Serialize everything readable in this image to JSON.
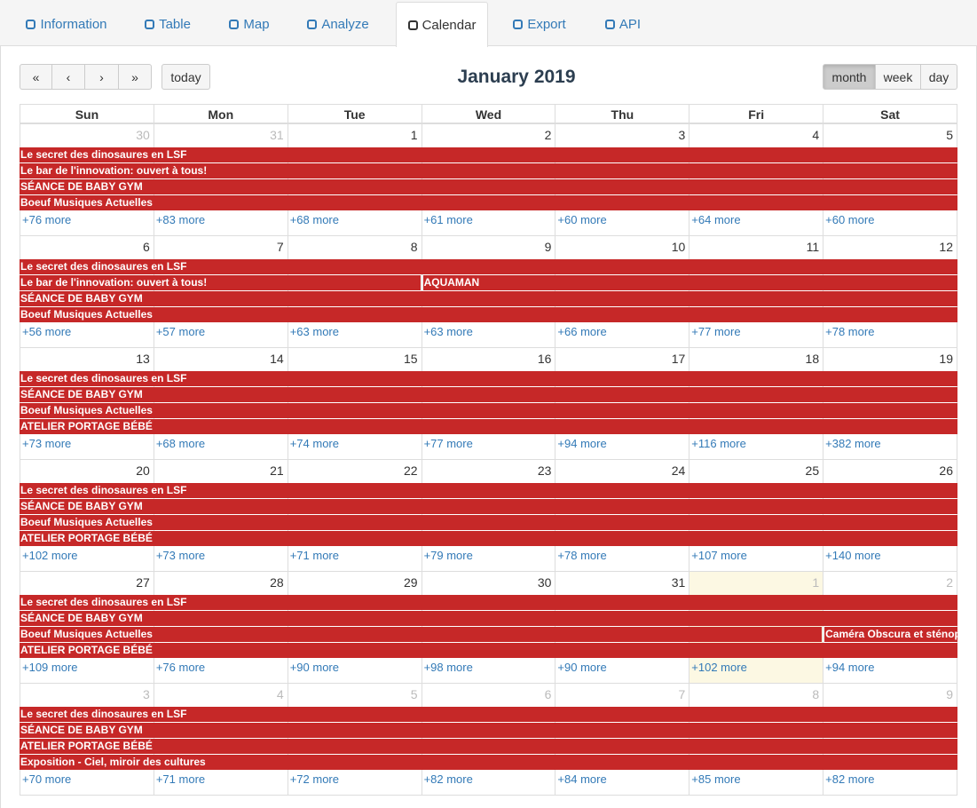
{
  "tabs": [
    {
      "label": "Information"
    },
    {
      "label": "Table"
    },
    {
      "label": "Map"
    },
    {
      "label": "Analyze"
    },
    {
      "label": "Calendar",
      "active": true
    },
    {
      "label": "Export"
    },
    {
      "label": "API"
    }
  ],
  "toolbar": {
    "today": "today",
    "title": "January 2019",
    "views": [
      {
        "label": "month",
        "active": true
      },
      {
        "label": "week"
      },
      {
        "label": "day"
      }
    ]
  },
  "weekdays": [
    "Sun",
    "Mon",
    "Tue",
    "Wed",
    "Thu",
    "Fri",
    "Sat"
  ],
  "weeks": [
    {
      "days": [
        {
          "day": 30,
          "other_month": true
        },
        {
          "day": 31,
          "other_month": true
        },
        {
          "day": 1
        },
        {
          "day": 2
        },
        {
          "day": 3
        },
        {
          "day": 4
        },
        {
          "day": 5
        }
      ],
      "rows": [
        [
          {
            "title": "Le secret des dinosaures en LSF"
          }
        ],
        [
          {
            "title": "Le bar de l'innovation: ouvert à tous!"
          }
        ],
        [
          {
            "title": "SÉANCE DE BABY GYM"
          }
        ],
        [
          {
            "title": "Boeuf Musiques Actuelles"
          }
        ]
      ],
      "more": [
        "+76 more",
        "+83 more",
        "+68 more",
        "+61 more",
        "+60 more",
        "+64 more",
        "+60 more"
      ]
    },
    {
      "days": [
        {
          "day": 6
        },
        {
          "day": 7
        },
        {
          "day": 8
        },
        {
          "day": 9
        },
        {
          "day": 10
        },
        {
          "day": 11
        },
        {
          "day": 12
        }
      ],
      "rows": [
        [
          {
            "title": "Le secret des dinosaures en LSF"
          }
        ],
        [
          {
            "title": "Le bar de l'innovation: ouvert à tous!",
            "start": 6,
            "end": 8
          },
          {
            "title": "AQUAMAN",
            "start": 9,
            "end": 12
          }
        ],
        [
          {
            "title": "SÉANCE DE BABY GYM"
          }
        ],
        [
          {
            "title": "Boeuf Musiques Actuelles"
          }
        ]
      ],
      "more": [
        "+56 more",
        "+57 more",
        "+63 more",
        "+63 more",
        "+66 more",
        "+77 more",
        "+78 more"
      ]
    },
    {
      "days": [
        {
          "day": 13
        },
        {
          "day": 14
        },
        {
          "day": 15
        },
        {
          "day": 16
        },
        {
          "day": 17
        },
        {
          "day": 18
        },
        {
          "day": 19
        }
      ],
      "rows": [
        [
          {
            "title": "Le secret des dinosaures en LSF"
          }
        ],
        [
          {
            "title": "SÉANCE DE BABY GYM"
          }
        ],
        [
          {
            "title": "Boeuf Musiques Actuelles"
          }
        ],
        [
          {
            "title": "ATELIER PORTAGE BÉBÉ"
          }
        ]
      ],
      "more": [
        "+73 more",
        "+68 more",
        "+74 more",
        "+77 more",
        "+94 more",
        "+116 more",
        "+382 more"
      ]
    },
    {
      "days": [
        {
          "day": 20
        },
        {
          "day": 21
        },
        {
          "day": 22
        },
        {
          "day": 23
        },
        {
          "day": 24
        },
        {
          "day": 25
        },
        {
          "day": 26
        }
      ],
      "rows": [
        [
          {
            "title": "Le secret des dinosaures en LSF"
          }
        ],
        [
          {
            "title": "SÉANCE DE BABY GYM"
          }
        ],
        [
          {
            "title": "Boeuf Musiques Actuelles"
          }
        ],
        [
          {
            "title": "ATELIER PORTAGE BÉBÉ"
          }
        ]
      ],
      "more": [
        "+102 more",
        "+73 more",
        "+71 more",
        "+79 more",
        "+78 more",
        "+107 more",
        "+140 more"
      ]
    },
    {
      "days": [
        {
          "day": 27
        },
        {
          "day": 28
        },
        {
          "day": 29
        },
        {
          "day": 30
        },
        {
          "day": 31
        },
        {
          "day": 1,
          "other_month": true,
          "today": true
        },
        {
          "day": 2,
          "other_month": true
        }
      ],
      "rows": [
        [
          {
            "title": "Le secret des dinosaures en LSF"
          }
        ],
        [
          {
            "title": "SÉANCE DE BABY GYM"
          }
        ],
        [
          {
            "title": "Boeuf Musiques Actuelles",
            "start": 27,
            "end": 1
          },
          {
            "title": "Caméra Obscura et sténop",
            "start": 2,
            "end": 2
          }
        ],
        [
          {
            "title": "ATELIER PORTAGE BÉBÉ"
          }
        ]
      ],
      "more": [
        "+109 more",
        "+76 more",
        "+90 more",
        "+98 more",
        "+90 more",
        "+102 more",
        "+94 more"
      ]
    },
    {
      "days": [
        {
          "day": 3,
          "other_month": true
        },
        {
          "day": 4,
          "other_month": true
        },
        {
          "day": 5,
          "other_month": true
        },
        {
          "day": 6,
          "other_month": true
        },
        {
          "day": 7,
          "other_month": true
        },
        {
          "day": 8,
          "other_month": true
        },
        {
          "day": 9,
          "other_month": true
        }
      ],
      "rows": [
        [
          {
            "title": "Le secret des dinosaures en LSF"
          }
        ],
        [
          {
            "title": "SÉANCE DE BABY GYM"
          }
        ],
        [
          {
            "title": "ATELIER PORTAGE BÉBÉ"
          }
        ],
        [
          {
            "title": "Exposition - Ciel, miroir des cultures"
          }
        ]
      ],
      "more": [
        "+70 more",
        "+71 more",
        "+72 more",
        "+82 more",
        "+84 more",
        "+85 more",
        "+82 more"
      ]
    }
  ]
}
